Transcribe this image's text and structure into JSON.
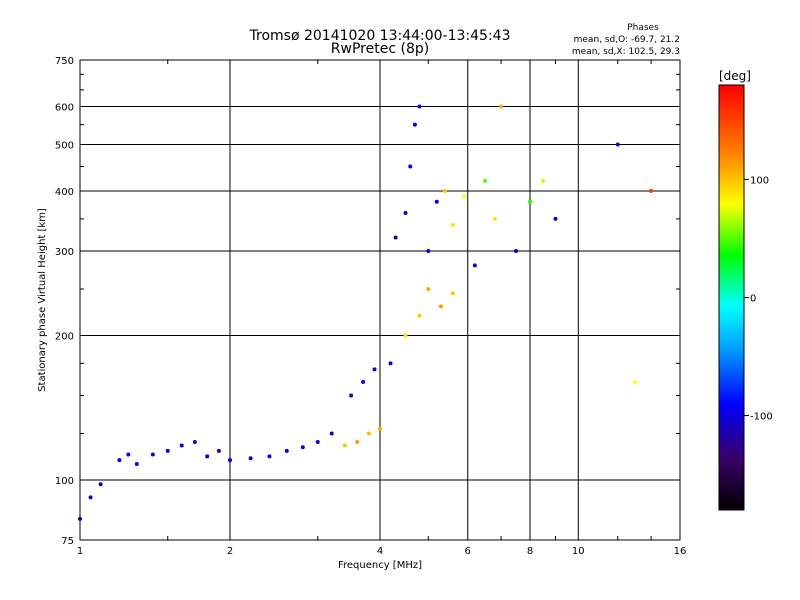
{
  "chart_data": {
    "type": "scatter",
    "title": "Tromsø 20141020 13:44:00-13:45:43",
    "subtitle": "RwPretec (8p)",
    "xlabel": "Frequency [MHz]",
    "ylabel": "Stationary phase Virtual Height [km]",
    "x_scale": "log",
    "y_scale": "log",
    "xlim": [
      1,
      16
    ],
    "ylim": [
      75,
      750
    ],
    "x_ticks": [
      1,
      2,
      4,
      6,
      8,
      10,
      16
    ],
    "y_ticks": [
      75,
      100,
      200,
      300,
      400,
      500,
      600,
      750
    ],
    "grid": true,
    "stats": {
      "title": "Phases",
      "line1": "mean, sd,O: -69.7, 21.2",
      "line2": "mean, sd,X: 102.5, 29.3"
    },
    "colorbar": {
      "label": "[deg]",
      "min": -180,
      "max": 180,
      "ticks": [
        100,
        0,
        -100
      ],
      "colors": [
        "#000000",
        "#3a0066",
        "#0000ff",
        "#00a0ff",
        "#00ffff",
        "#00ff00",
        "#ffff00",
        "#ff8000",
        "#ff0000"
      ]
    },
    "series": [
      {
        "points": [
          [
            1.0,
            83,
            -120
          ],
          [
            1.05,
            92,
            -120
          ],
          [
            1.1,
            98,
            -110
          ],
          [
            1.2,
            110,
            -100
          ],
          [
            1.25,
            113,
            -95
          ],
          [
            1.3,
            108,
            -90
          ],
          [
            1.4,
            113,
            -100
          ],
          [
            1.5,
            115,
            -95
          ],
          [
            1.6,
            118,
            -100
          ],
          [
            1.7,
            120,
            -105
          ],
          [
            1.8,
            112,
            -100
          ],
          [
            1.9,
            115,
            -110
          ],
          [
            2.0,
            110,
            -95
          ],
          [
            2.2,
            111,
            -100
          ],
          [
            2.4,
            112,
            -95
          ],
          [
            2.6,
            115,
            -90
          ],
          [
            2.8,
            117,
            -95
          ],
          [
            3.0,
            120,
            -100
          ],
          [
            3.2,
            125,
            -110
          ],
          [
            3.4,
            118,
            110
          ],
          [
            3.6,
            120,
            125
          ],
          [
            3.8,
            125,
            115
          ],
          [
            4.0,
            128,
            120
          ],
          [
            3.5,
            150,
            -110
          ],
          [
            3.7,
            160,
            -100
          ],
          [
            3.9,
            170,
            -115
          ],
          [
            4.2,
            175,
            -110
          ],
          [
            4.5,
            200,
            100
          ],
          [
            4.8,
            220,
            110
          ],
          [
            5.0,
            250,
            120
          ],
          [
            5.3,
            230,
            125
          ],
          [
            5.6,
            245,
            110
          ],
          [
            4.3,
            320,
            -120
          ],
          [
            4.5,
            360,
            -100
          ],
          [
            4.6,
            450,
            -90
          ],
          [
            4.7,
            550,
            -95
          ],
          [
            4.8,
            600,
            -100
          ],
          [
            5.0,
            300,
            -90
          ],
          [
            5.2,
            380,
            -95
          ],
          [
            5.4,
            400,
            110
          ],
          [
            5.6,
            340,
            100
          ],
          [
            5.9,
            390,
            90
          ],
          [
            6.2,
            280,
            -100
          ],
          [
            6.5,
            420,
            60
          ],
          [
            6.8,
            350,
            100
          ],
          [
            7.0,
            600,
            120
          ],
          [
            7.5,
            300,
            -110
          ],
          [
            8.0,
            380,
            50
          ],
          [
            8.5,
            420,
            80
          ],
          [
            9.0,
            350,
            -110
          ],
          [
            12,
            500,
            -120
          ],
          [
            13,
            160,
            90
          ],
          [
            14,
            400,
            160
          ]
        ]
      }
    ]
  }
}
